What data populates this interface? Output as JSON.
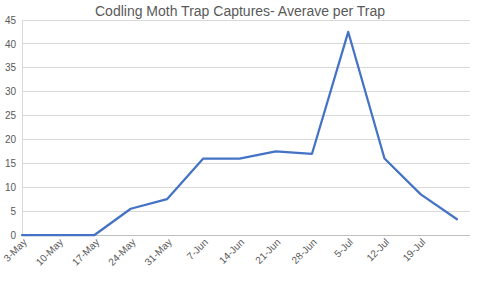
{
  "chart_data": {
    "type": "line",
    "title": "Codling Moth Trap Captures- Averave per Trap",
    "categories": [
      "3-May",
      "10-May",
      "17-May",
      "24-May",
      "31-May",
      "7-Jun",
      "14-Jun",
      "21-Jun",
      "28-Jun",
      "5-Jul",
      "12-Jul",
      "19-Jul",
      null
    ],
    "values": [
      0,
      0,
      0,
      5.5,
      7.5,
      16,
      16,
      17.5,
      17,
      42.5,
      16,
      8.5,
      3.3
    ],
    "color": "#4472c4",
    "ylim": [
      0,
      45
    ],
    "yticks": [
      0,
      5,
      10,
      15,
      20,
      25,
      30,
      35,
      40,
      45
    ],
    "grid": true
  }
}
